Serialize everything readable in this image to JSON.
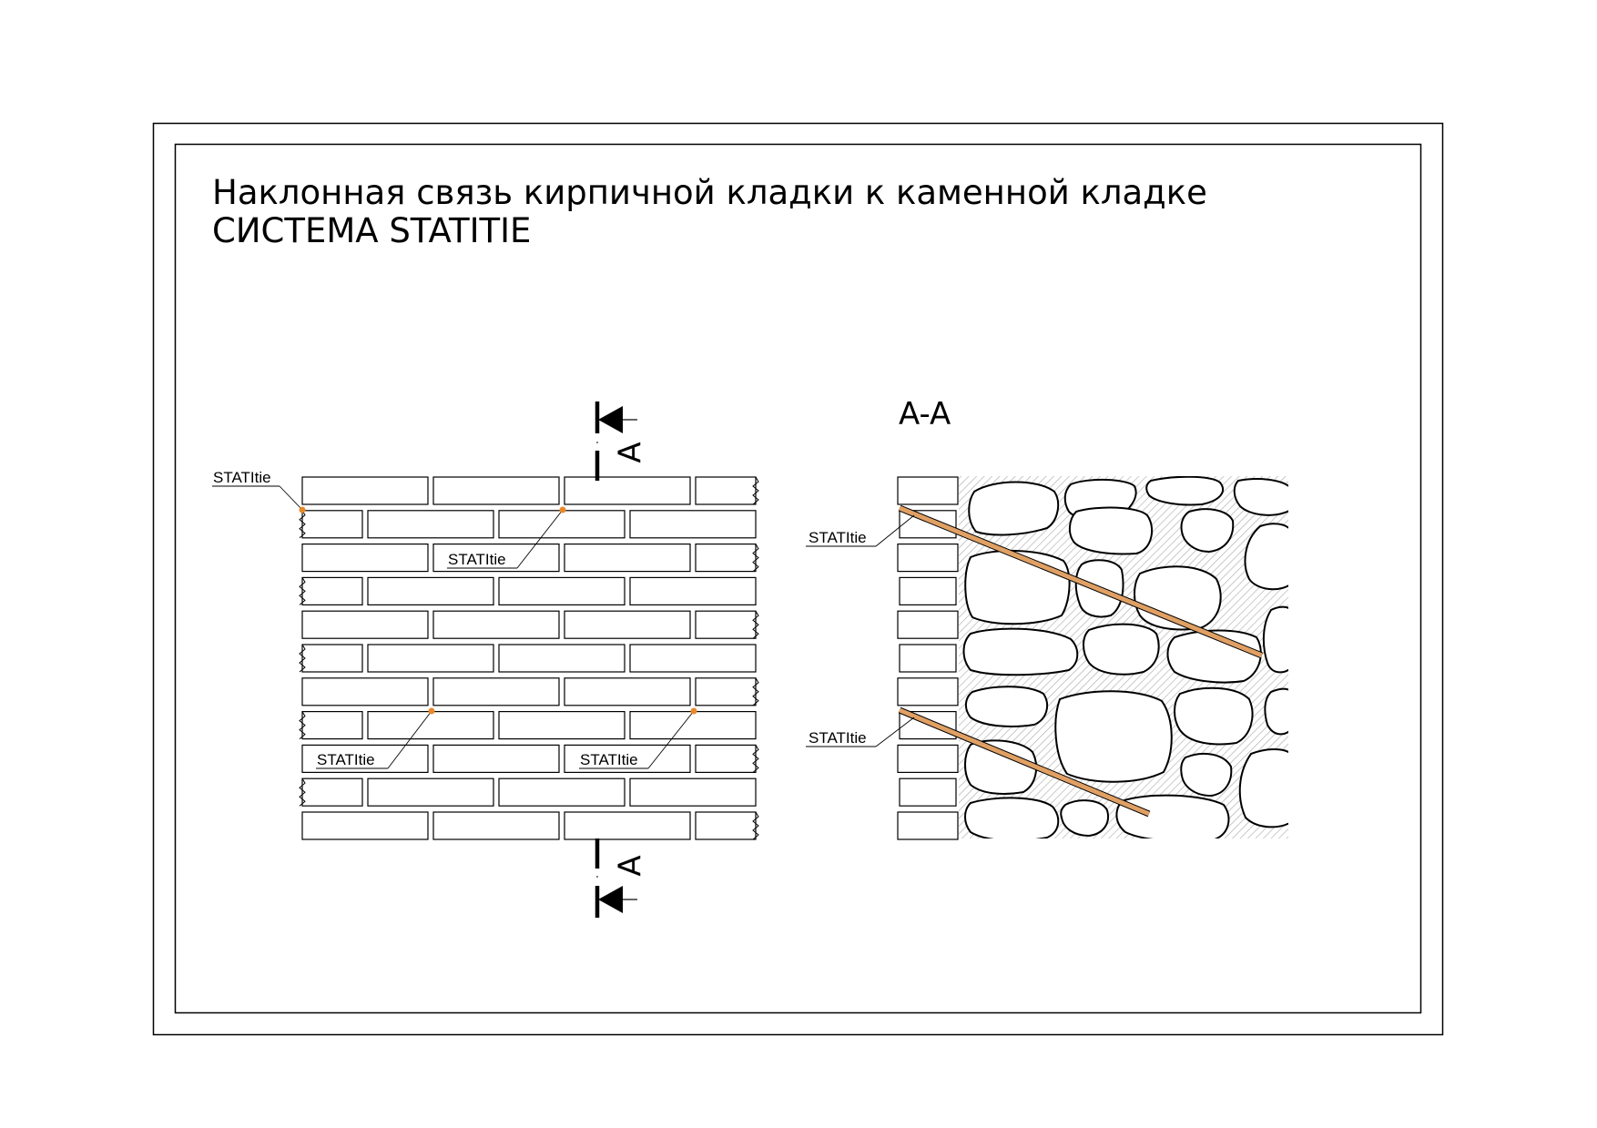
{
  "title": {
    "line1": "Наклонная связь кирпичной кладки к каменной кладке",
    "line2": "СИСТЕМА STATITIE"
  },
  "section": {
    "letter_top": "A",
    "letter_bottom": "A",
    "view_title": "A-A"
  },
  "labels": {
    "wall_top_left": "STATItie",
    "wall_mid": "STATItie",
    "wall_bottom_left": "STATItie",
    "wall_bottom_right": "STATItie",
    "section_upper": "STATItie",
    "section_lower": "STATItie"
  },
  "colors": {
    "tie": "#e0a064",
    "tie_point": "#e8892a",
    "hatch": "#a0a0a0",
    "line": "#000000"
  }
}
